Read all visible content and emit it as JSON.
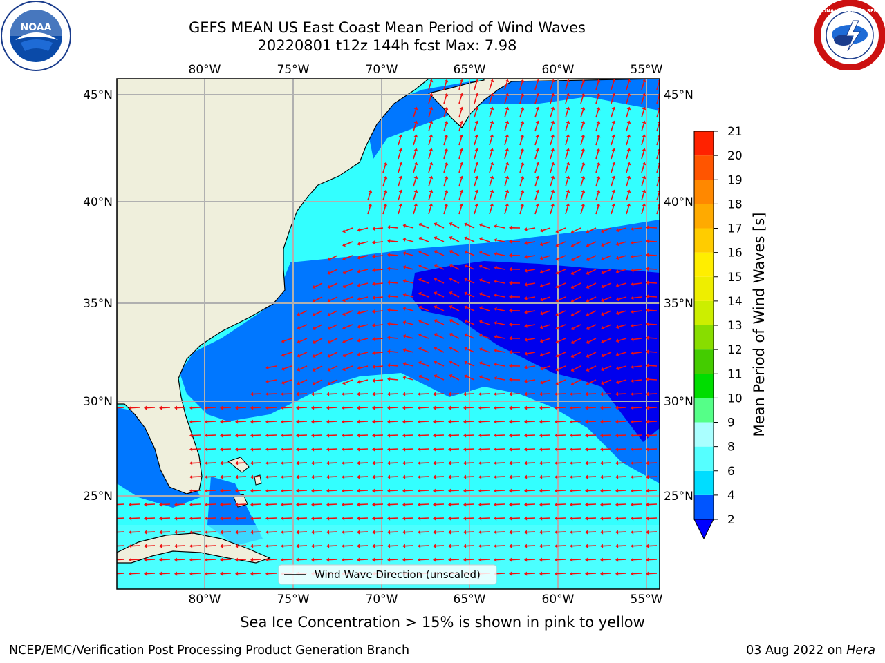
{
  "title": {
    "line1": "GEFS MEAN US East Coast Mean Period of Wind Waves",
    "line2": "20220801 t12z 144h fcst   Max: 7.98"
  },
  "map": {
    "lon_labels": [
      "80°W",
      "75°W",
      "70°W",
      "65°W",
      "60°W",
      "55°W"
    ],
    "lat_labels": [
      "45°N",
      "40°N",
      "35°N",
      "30°N",
      "25°N"
    ],
    "lon_range": [
      -85,
      -55
    ],
    "lat_range": [
      20.5,
      46
    ],
    "legend_label": "Wind Wave Direction (unscaled)",
    "colors": {
      "land": "#efefdc",
      "ocean_lightcyan": "#33ffff",
      "cyan_mid": "#00e8ff",
      "blue": "#0077ff",
      "darkblue": "#0000ee",
      "arrow": "#ee1111",
      "grid": "#b0b0b0"
    }
  },
  "colorbar": {
    "label": "Mean Period of Wind Waves [s]",
    "ticks": [
      "2",
      "4",
      "6",
      "8",
      "9",
      "10",
      "11",
      "12",
      "13",
      "14",
      "15",
      "16",
      "17",
      "18",
      "19",
      "20",
      "21"
    ],
    "colors": [
      "#0055ff",
      "#00ddff",
      "#55ffff",
      "#aaffff",
      "#55ff88",
      "#00dd00",
      "#44cc00",
      "#88dd00",
      "#ccee00",
      "#eeee00",
      "#ffee00",
      "#ffcc00",
      "#ffaa00",
      "#ff8800",
      "#ff5500",
      "#ff2200"
    ],
    "under_color": "#0000ff"
  },
  "ice_note": "Sea Ice Concentration > 15% is shown in pink to yellow",
  "footer": {
    "left": "NCEP/EMC/Verification Post Processing Product Generation Branch",
    "date": "03 Aug 2022 on ",
    "machine": "Hera"
  },
  "logos": {
    "noaa_text": "NOAA",
    "nws_text": "NATIONAL WEATHER SERVICE"
  }
}
